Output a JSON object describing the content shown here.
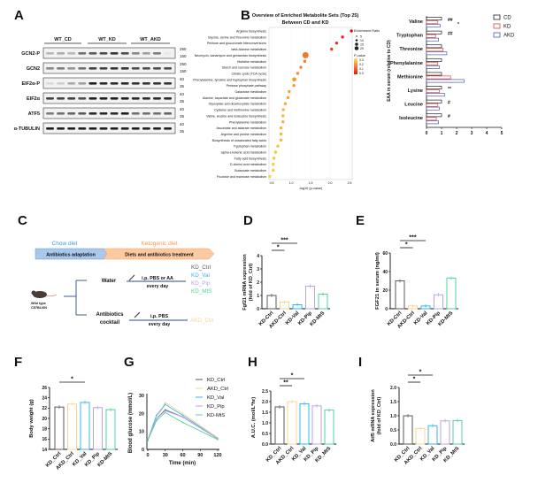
{
  "colors": {
    "KD_Ctrl": "#5a5a5a",
    "AKD_Ctrl": "#f8d493",
    "KD_Val": "#39b3e6",
    "KD_Pip": "#b8a4e0",
    "KD_MtS": "#55d0a0",
    "CD": "#222222",
    "KD": "#e0404a",
    "AKD": "#4a5aa8",
    "chow": "#3a9be0",
    "keto": "#f59a4a"
  },
  "panelA": {
    "label": "A",
    "groups": [
      "WT_CD",
      "WT_KD",
      "WT_AKD"
    ],
    "rows": [
      {
        "name": "GCN2-P",
        "markers": [
          "250",
          "150"
        ],
        "band_intensity": [
          0.3,
          0.35,
          0.3,
          0.6,
          0.7,
          0.75,
          0.85,
          0.75,
          0.5,
          0.4,
          0.55,
          0.1
        ]
      },
      {
        "name": "GCN2",
        "markers": [
          "250",
          "150"
        ],
        "band_intensity": [
          0.5,
          0.55,
          0.45,
          0.6,
          0.8,
          0.8,
          0.85,
          0.85,
          0.75,
          0.75,
          0.75,
          0.75
        ]
      },
      {
        "name": "EIF2α-P",
        "markers": [
          "40",
          "35"
        ],
        "band_intensity": [
          0.15,
          0.2,
          0.35,
          0.4,
          0.95,
          0.9,
          0.9,
          0.9,
          0.85,
          0.85,
          0.85,
          0.85
        ]
      },
      {
        "name": "EIF2α",
        "markers": [
          "40",
          "35"
        ],
        "band_intensity": [
          0.8,
          0.8,
          0.8,
          0.75,
          0.95,
          0.95,
          0.95,
          0.95,
          0.9,
          0.9,
          0.9,
          0.9
        ]
      },
      {
        "name": "ATF5",
        "markers": [
          "40",
          "35"
        ],
        "band_intensity": [
          0.55,
          0.6,
          0.65,
          0.7,
          0.9,
          0.9,
          0.9,
          0.95,
          0.6,
          0.6,
          0.6,
          0.65
        ]
      },
      {
        "name": "α-TUBULIN",
        "markers": [
          "40",
          "35"
        ],
        "band_intensity": [
          0.95,
          0.95,
          0.95,
          0.95,
          0.95,
          0.95,
          0.95,
          0.95,
          0.95,
          0.95,
          0.95,
          0.95
        ]
      }
    ]
  },
  "chart_data": [
    {
      "id": "B",
      "label": "B",
      "type": "scatter",
      "title": "Overview of Enriched Metabolite Sets (Top 25)",
      "subtitle": "Between CD and KD",
      "xlabel": "-log10 (p-value)",
      "xlim": [
        0.4,
        2.6
      ],
      "xticks": [
        "0.5",
        "1.0",
        "1.5",
        "2.0",
        "2.5"
      ],
      "grid": true,
      "size_legend": {
        "title": "Enrichment Ratio",
        "values": [
          "5",
          "10",
          "15",
          "20"
        ]
      },
      "color_legend": {
        "title": "P-value",
        "values": [
          "0.3",
          "0.2",
          "0.1",
          "0.0"
        ]
      },
      "categories": [
        "Arginine biosynthesis",
        "Glycine, serine and threonine metabolism",
        "Pentose and glucuronate interconversions",
        "beta-Alanine metabolism",
        "Neomycin, kanamycin and gentamicin biosynthesis",
        "Histidine metabolism",
        "Starch and sucrose metabolism",
        "Citrate cycle (TCA cycle)",
        "Phenylalanine, tyrosine and tryptophan biosynthesis",
        "Pentose phosphate pathway",
        "Galactose metabolism",
        "Alanine, aspartate and glutamate metabolism",
        "Glyoxylate and dicarboxylate metabolism",
        "Cysteine and methionine metabolism",
        "Valine, leucine and isoleucine biosynthesis",
        "Phenylalanine metabolism",
        "Ascorbate and aldarate metabolism",
        "Arginine and proline metabolism",
        "Biosynthesis of unsaturated fatty acids",
        "Tryptophan metabolism",
        "alpha-Linolenic acid metabolism",
        "Fatty acid biosynthesis",
        "D-Amino acid metabolism",
        "Butanoate metabolism",
        "Fructose and mannose metabolism"
      ],
      "x": [
        2.55,
        2.32,
        2.17,
        2.04,
        1.37,
        1.35,
        1.25,
        1.17,
        1.08,
        1.07,
        0.95,
        0.92,
        0.85,
        0.8,
        0.79,
        0.79,
        0.74,
        0.74,
        0.74,
        0.66,
        0.6,
        0.56,
        0.54,
        0.54,
        0.45
      ],
      "enrichment_ratio": [
        5,
        5,
        5,
        5,
        20,
        5,
        5,
        5,
        10,
        5,
        5,
        5,
        5,
        5,
        5,
        5,
        5,
        5,
        5,
        5,
        5,
        5,
        5,
        5,
        5
      ]
    },
    {
      "id": "EAA",
      "type": "bar",
      "orientation": "horizontal",
      "ylabel": "EAA in serum (relative to CD)",
      "xlim": [
        0,
        5
      ],
      "xticks": [
        "0",
        "1",
        "2",
        "3",
        "4",
        "5"
      ],
      "categories": [
        "Valine",
        "Tryptophan",
        "Threonine",
        "Phenylalanine",
        "Methionine",
        "Lysine",
        "Leucine",
        "Isoleucine"
      ],
      "series": [
        {
          "name": "CD",
          "values": [
            1,
            1,
            1,
            1,
            1,
            1,
            1,
            1
          ]
        },
        {
          "name": "KD",
          "values": [
            0.75,
            0.6,
            1.1,
            0.75,
            1.6,
            0.85,
            0.75,
            0.65
          ]
        },
        {
          "name": "AKD",
          "values": [
            0.9,
            0.8,
            1.35,
            0.85,
            2.5,
            1.2,
            0.85,
            0.8
          ]
        }
      ],
      "annotations": [
        {
          "category": "Valine",
          "text": "##"
        },
        {
          "category": "Valine",
          "text": "*"
        },
        {
          "category": "Tryptophan",
          "text": "##"
        },
        {
          "category": "Lysine",
          "text": "**"
        },
        {
          "category": "Leucine",
          "text": "#"
        },
        {
          "category": "Isoleucine",
          "text": "#"
        }
      ],
      "legend": "top-right"
    },
    {
      "id": "D",
      "label": "D",
      "type": "bar",
      "ylabel": "Fgf21 mRNA expression",
      "ylabel2": "(fold of KD_Ctrl)",
      "categories": [
        "KD-Ctrl",
        "AKD-Ctrl",
        "KD-Val",
        "KD-Pip",
        "KD-MtS"
      ],
      "values": [
        1.0,
        0.5,
        0.3,
        1.7,
        1.1
      ],
      "ylim": [
        0,
        4
      ],
      "yticks": [
        "0",
        "1",
        "2",
        "3",
        "4"
      ],
      "significance": [
        {
          "from": 0,
          "to": 1,
          "text": "*"
        },
        {
          "from": 0,
          "to": 2,
          "text": "***"
        }
      ]
    },
    {
      "id": "E",
      "label": "E",
      "type": "bar",
      "ylabel": "FGF21 in serum  (ng/ml)",
      "categories": [
        "KD-Ctrl",
        "AKD-Ctrl",
        "KD-Val",
        "KD-Pip",
        "KD-MtS"
      ],
      "values": [
        30,
        3,
        3,
        15,
        33
      ],
      "ylim": [
        0,
        60
      ],
      "yticks": [
        "0",
        "20",
        "40",
        "60"
      ],
      "significance": [
        {
          "from": 0,
          "to": 1,
          "text": "*"
        },
        {
          "from": 0,
          "to": 2,
          "text": "***"
        }
      ]
    },
    {
      "id": "F",
      "label": "F",
      "type": "bar",
      "ylabel": "Body weight (g)",
      "categories": [
        "KD_Ctrl",
        "AKD_Ctrl",
        "KD_Val",
        "KD_Pip",
        "KD-MtS"
      ],
      "values": [
        22.2,
        22.8,
        23.1,
        22.1,
        21.7
      ],
      "ylim": [
        14,
        26
      ],
      "yticks": [
        "14",
        "16",
        "18",
        "20",
        "22",
        "24",
        "26"
      ],
      "significance": [
        {
          "from": 0,
          "to": 2,
          "text": "*"
        }
      ]
    },
    {
      "id": "G",
      "label": "G",
      "type": "line",
      "xlabel": "Time (min)",
      "ylabel": "Blood glucose (mmol/L)",
      "x": [
        0,
        15,
        30,
        60,
        120
      ],
      "xlim": [
        0,
        120
      ],
      "xticks": [
        "0",
        "30",
        "60",
        "90",
        "120"
      ],
      "ylim": [
        0,
        30
      ],
      "yticks": [
        "0",
        "10",
        "20",
        "30"
      ],
      "legend": "top-right",
      "series": [
        {
          "name": "KD_Ctrl",
          "values": [
            5,
            17,
            22,
            18,
            6
          ]
        },
        {
          "name": "AKD_Ctrl",
          "values": [
            5,
            17,
            26,
            20,
            6.5
          ]
        },
        {
          "name": "KD_Val",
          "values": [
            5,
            19,
            25,
            19,
            6
          ]
        },
        {
          "name": "KD_Pip",
          "values": [
            5,
            17,
            21.5,
            18,
            6
          ]
        },
        {
          "name": "KD-MtS",
          "values": [
            5,
            16,
            20.5,
            15,
            5.5
          ]
        }
      ]
    },
    {
      "id": "H",
      "label": "H",
      "type": "bar",
      "ylabel": "A.U.C. (mol/L*hr)",
      "categories": [
        "KD_Ctrl",
        "AKD_Ctrl",
        "KD_Val",
        "KD_Pip",
        "KD_MtS"
      ],
      "values": [
        1.75,
        2.0,
        1.9,
        1.8,
        1.6
      ],
      "ylim": [
        0,
        2.5
      ],
      "yticks": [
        "0.0",
        "0.5",
        "1.0",
        "1.5",
        "2.0",
        "2.5"
      ],
      "significance": [
        {
          "from": 0,
          "to": 1,
          "text": "**"
        },
        {
          "from": 0,
          "to": 2,
          "text": "*"
        }
      ]
    },
    {
      "id": "I",
      "label": "I",
      "type": "bar",
      "ylabel": "Atf5 mRNA expression",
      "ylabel2": "(fold of KD_Ctrl)",
      "categories": [
        "KD_Ctrl",
        "AKD_Ctrl",
        "KD_Val",
        "KD_Pip",
        "KD_MtS"
      ],
      "values": [
        1.0,
        0.55,
        0.65,
        0.82,
        0.83
      ],
      "ylim": [
        0,
        2
      ],
      "yticks": [
        "0.0",
        "0.5",
        "1.0",
        "1.5",
        "2.0"
      ],
      "significance": [
        {
          "from": 0,
          "to": 1,
          "text": "*"
        },
        {
          "from": 0,
          "to": 2,
          "text": "*"
        }
      ]
    }
  ],
  "panelC": {
    "label": "C",
    "chow": "Chow diet",
    "keto": "Ketogenic diet",
    "phase1": "Antibiotics adaptation",
    "phase2": "Diets and antibiotics treatment",
    "mouse_line1": "Wild type",
    "mouse_line2": "C57BL/6N",
    "water": "Water",
    "water_treat1": "i.p.  PBS or AA",
    "water_treat2": "every day",
    "water_groups": [
      "KD_Ctrl",
      "KD_Val",
      "KD_Pip",
      "KD_MtS"
    ],
    "abx1": "Antibiotics",
    "abx2": "cocktail",
    "abx_treat1": "i.p.  PBS",
    "abx_treat2": "every day",
    "abx_group": "AKD_Ctrl"
  }
}
